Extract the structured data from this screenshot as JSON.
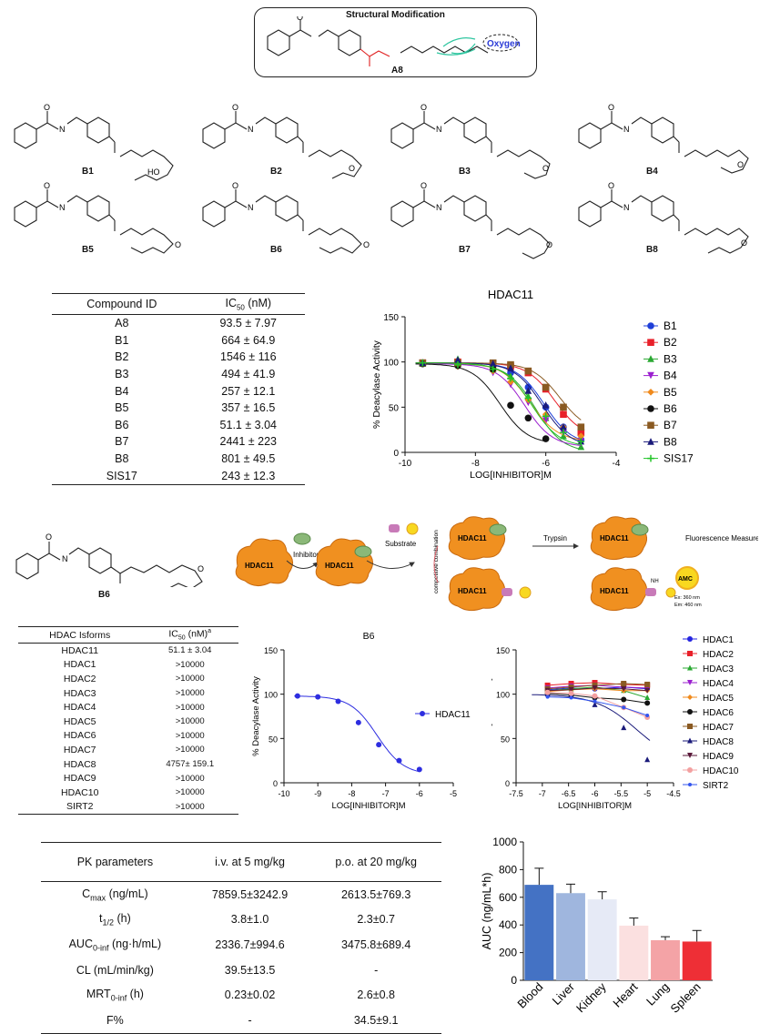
{
  "top": {
    "box_title": "Structural Modification",
    "oxygen_label": "Oxygen",
    "compound_label": "A8"
  },
  "compounds": [
    "B1",
    "B2",
    "B3",
    "B4",
    "B5",
    "B6",
    "B7",
    "B8"
  ],
  "atoms": {
    "O": "O",
    "HO": "HO",
    "N": "N",
    "H": "H"
  },
  "table_ic50": {
    "headers": [
      "Compound ID",
      "IC",
      "50",
      " (nM)"
    ],
    "rows": [
      [
        "A8",
        "93.5 ± 7.97"
      ],
      [
        "B1",
        "664 ± 64.9"
      ],
      [
        "B2",
        "1546 ± 116"
      ],
      [
        "B3",
        "494 ± 41.9"
      ],
      [
        "B4",
        "257 ± 12.1"
      ],
      [
        "B5",
        "357 ± 16.5"
      ],
      [
        "B6",
        "51.1 ± 3.04"
      ],
      [
        "B7",
        "2441 ± 223"
      ],
      [
        "B8",
        "801 ± 49.5"
      ],
      [
        "SIS17",
        "243 ± 12.3"
      ]
    ]
  },
  "assay": {
    "compound": "B6",
    "enzyme": "HDAC11",
    "inhibitor": "Inhibitor",
    "substrate": "Substrate",
    "competitive": "competitive combination",
    "trypsin": "Trypsin",
    "fluorescence": "Fluorescence Measurement",
    "amc": "AMC",
    "nh2": "NH",
    "ex": "Ex: 360 nm",
    "em": "Em: 460 nm"
  },
  "table_isoforms": {
    "headers": [
      "HDAC Isforms",
      "IC",
      "50",
      " (nM)",
      "a"
    ],
    "rows": [
      [
        "HDAC11",
        "51.1 ± 3.04"
      ],
      [
        "HDAC1",
        ">10000"
      ],
      [
        "HDAC2",
        ">10000"
      ],
      [
        "HDAC3",
        ">10000"
      ],
      [
        "HDAC4",
        ">10000"
      ],
      [
        "HDAC5",
        ">10000"
      ],
      [
        "HDAC6",
        ">10000"
      ],
      [
        "HDAC7",
        ">10000"
      ],
      [
        "HDAC8",
        "4757± 159.1"
      ],
      [
        "HDAC9",
        ">10000"
      ],
      [
        "HDAC10",
        ">10000"
      ],
      [
        "SIRT2",
        ">10000"
      ]
    ]
  },
  "table_pk": {
    "headers": [
      "PK parameters",
      "i.v. at 5 mg/kg",
      "p.o. at 20 mg/kg"
    ],
    "rows": [
      {
        "name": "C",
        "sub": "max",
        "unit": " (ng/mL)",
        "iv": "7859.5±3242.9",
        "po": "2613.5±769.3"
      },
      {
        "name": "t",
        "sub": "1/2",
        "unit": " (h)",
        "iv": "3.8±1.0",
        "po": "2.3±0.7"
      },
      {
        "name": "AUC",
        "sub": "0-inf",
        "unit": " (ng·h/mL)",
        "iv": "2336.7±994.6",
        "po": "3475.8±689.4"
      },
      {
        "name": "CL (mL/min/kg)",
        "sub": "",
        "unit": "",
        "iv": "39.5±13.5",
        "po": "-"
      },
      {
        "name": "MRT",
        "sub": "0-inf",
        "unit": " (h)",
        "iv": "0.23±0.02",
        "po": "2.6±0.8"
      },
      {
        "name": "F%",
        "sub": "",
        "unit": "",
        "iv": "-",
        "po": "34.5±9.1"
      }
    ]
  },
  "chart_data": [
    {
      "type": "line",
      "title": "HDAC11",
      "xlabel": "LOG[INHIBITOR]M",
      "ylabel": "% Deacylase Activity",
      "xlim": [
        -10,
        -4
      ],
      "ylim": [
        0,
        150
      ],
      "xticks": [
        -10,
        -8,
        -6,
        -4
      ],
      "yticks": [
        0,
        50,
        100,
        150
      ],
      "legend": "right",
      "series": [
        {
          "name": "B1",
          "color": "#1f3fd8",
          "marker": "circle",
          "ec50": -6.05,
          "x": [
            -9.5,
            -8.5,
            -7.5,
            -7,
            -6.5,
            -6,
            -5.5,
            -5
          ],
          "y": [
            99,
            98,
            96,
            88,
            72,
            50,
            28,
            14
          ]
        },
        {
          "name": "B2",
          "color": "#e8202a",
          "marker": "square",
          "ec50": -5.75,
          "x": [
            -9.5,
            -8.5,
            -7.5,
            -7,
            -6.5,
            -6,
            -5.5,
            -5
          ],
          "y": [
            99,
            100,
            98,
            95,
            88,
            70,
            42,
            22
          ]
        },
        {
          "name": "B3",
          "color": "#2aa832",
          "marker": "triangle",
          "ec50": -6.3,
          "x": [
            -9.5,
            -8.5,
            -7.5,
            -7,
            -6.5,
            -6,
            -5.5,
            -5
          ],
          "y": [
            98,
            103,
            92,
            84,
            62,
            38,
            18,
            6
          ]
        },
        {
          "name": "B4",
          "color": "#9b1fcf",
          "marker": "tri-down",
          "ec50": -6.6,
          "x": [
            -9.5,
            -8.5,
            -7.5,
            -7,
            -6.5,
            -6,
            -5.5,
            -5
          ],
          "y": [
            98,
            97,
            88,
            75,
            55,
            35,
            22,
            12
          ]
        },
        {
          "name": "B5",
          "color": "#f08a1c",
          "marker": "diamond",
          "ec50": -6.45,
          "x": [
            -9.5,
            -8.5,
            -7.5,
            -7,
            -6.5,
            -6,
            -5.5,
            -5
          ],
          "y": [
            99,
            95,
            90,
            78,
            58,
            42,
            28,
            18
          ]
        },
        {
          "name": "B6",
          "color": "#111111",
          "marker": "circle",
          "ec50": -7.3,
          "x": [
            -9.5,
            -8.5,
            -7.5,
            -7,
            -6.5,
            -6
          ],
          "y": [
            98,
            96,
            92,
            52,
            38,
            15
          ]
        },
        {
          "name": "B7",
          "color": "#8a5a22",
          "marker": "square",
          "ec50": -5.6,
          "x": [
            -9.5,
            -8.5,
            -7.5,
            -7,
            -6.5,
            -6,
            -5.5,
            -5
          ],
          "y": [
            99,
            99,
            99,
            97,
            90,
            72,
            50,
            28
          ]
        },
        {
          "name": "B8",
          "color": "#1a1a7a",
          "marker": "triangle",
          "ec50": -6.1,
          "x": [
            -9.5,
            -8.5,
            -7.5,
            -7,
            -6.5,
            -6,
            -5.5,
            -5
          ],
          "y": [
            99,
            102,
            98,
            93,
            68,
            52,
            28,
            12
          ]
        },
        {
          "name": "SIS17",
          "color": "#22c428",
          "marker": "star",
          "ec50": -6.4,
          "x": [
            -9.5,
            -8.5,
            -7.5,
            -7,
            -6.5,
            -6,
            -5.5,
            -5
          ],
          "y": [
            99,
            97,
            92,
            82,
            60,
            40,
            22,
            12
          ]
        }
      ]
    },
    {
      "type": "line",
      "title": "B6",
      "xlabel": "LOG[INHIBITOR]M",
      "ylabel": "% Deacylase Activity",
      "xlim": [
        -10,
        -5
      ],
      "ylim": [
        0,
        150
      ],
      "xticks": [
        -10,
        -9,
        -8,
        -7,
        -6,
        -5
      ],
      "yticks": [
        0,
        50,
        100,
        150
      ],
      "legend": "right",
      "series": [
        {
          "name": "HDAC11",
          "color": "#2d2de0",
          "marker": "circle",
          "ec50": -7.25,
          "x": [
            -9.6,
            -9,
            -8.4,
            -7.8,
            -7.2,
            -6.6,
            -6
          ],
          "y": [
            98,
            97,
            92,
            68,
            43,
            25,
            15
          ]
        }
      ]
    },
    {
      "type": "line",
      "xlabel": "LOG[INHIBITOR]M",
      "ylabel": "% Deacylase Activity",
      "xlim": [
        -7.5,
        -4.5
      ],
      "ylim": [
        0,
        150
      ],
      "xticks": [
        -7.5,
        -7,
        -6.5,
        -6,
        -5.5,
        -5,
        -4.5
      ],
      "yticks": [
        0,
        50,
        100,
        150
      ],
      "legend": "right",
      "series": [
        {
          "name": "HDAC1",
          "color": "#2424e0",
          "marker": "circle",
          "x": [
            -6.9,
            -6.45,
            -6,
            -5.45,
            -5
          ],
          "y": [
            105,
            107,
            106,
            108,
            106
          ]
        },
        {
          "name": "HDAC2",
          "color": "#e8202a",
          "marker": "square",
          "x": [
            -6.9,
            -6.45,
            -6,
            -5.45,
            -5
          ],
          "y": [
            110,
            112,
            113,
            111,
            110
          ]
        },
        {
          "name": "HDAC3",
          "color": "#2aa832",
          "marker": "triangle",
          "x": [
            -6.9,
            -6.45,
            -6,
            -5.45,
            -5
          ],
          "y": [
            104,
            106,
            108,
            104,
            96
          ]
        },
        {
          "name": "HDAC4",
          "color": "#9b1fcf",
          "marker": "tri-down",
          "x": [
            -6.9,
            -6.45,
            -6,
            -5.45,
            -5
          ],
          "y": [
            107,
            109,
            110,
            108,
            107
          ]
        },
        {
          "name": "HDAC5",
          "color": "#f08a1c",
          "marker": "diamond",
          "x": [
            -6.9,
            -6.45,
            -6,
            -5.45,
            -5
          ],
          "y": [
            103,
            105,
            106,
            104,
            104
          ]
        },
        {
          "name": "HDAC6",
          "color": "#111111",
          "marker": "circle",
          "x": [
            -6.9,
            -6.45,
            -6,
            -5.45,
            -5
          ],
          "y": [
            101,
            99,
            96,
            94,
            90
          ]
        },
        {
          "name": "HDAC7",
          "color": "#8a5a22",
          "marker": "square",
          "x": [
            -6.9,
            -6.45,
            -6,
            -5.45,
            -5
          ],
          "y": [
            106,
            108,
            110,
            112,
            111
          ]
        },
        {
          "name": "HDAC8",
          "color": "#1a1a7a",
          "marker": "triangle",
          "ec50": -5.2,
          "x": [
            -6.9,
            -6.45,
            -6,
            -5.45,
            -5
          ],
          "y": [
            100,
            98,
            88,
            62,
            26
          ]
        },
        {
          "name": "HDAC9",
          "color": "#5a1a3a",
          "marker": "tri-down",
          "x": [
            -6.9,
            -6.45,
            -6,
            -5.45,
            -5
          ],
          "y": [
            104,
            105,
            107,
            106,
            104
          ]
        },
        {
          "name": "HDAC10",
          "color": "#f3a0a0",
          "marker": "circle",
          "x": [
            -6.9,
            -6.45,
            -6,
            -5.45,
            -5
          ],
          "y": [
            102,
            101,
            98,
            85,
            74
          ]
        },
        {
          "name": "SIRT2",
          "color": "#3355ee",
          "marker": "dot",
          "x": [
            -6.9,
            -6.45,
            -6,
            -5.45,
            -5
          ],
          "y": [
            97,
            96,
            92,
            85,
            76
          ]
        }
      ]
    },
    {
      "type": "bar",
      "ylabel": "AUC (ng/mL*h)",
      "ylim": [
        0,
        1000
      ],
      "yticks": [
        0,
        200,
        400,
        600,
        800,
        1000
      ],
      "categories": [
        "Blood",
        "Liver",
        "Kidney",
        "Heart",
        "Lung",
        "Spleen"
      ],
      "values": [
        690,
        630,
        585,
        395,
        290,
        280
      ],
      "errors": [
        120,
        65,
        55,
        55,
        25,
        80
      ],
      "colors": [
        "#4472c4",
        "#9fb6de",
        "#e6eaf6",
        "#fbe0e0",
        "#f4a3a6",
        "#ee2f36"
      ]
    }
  ]
}
